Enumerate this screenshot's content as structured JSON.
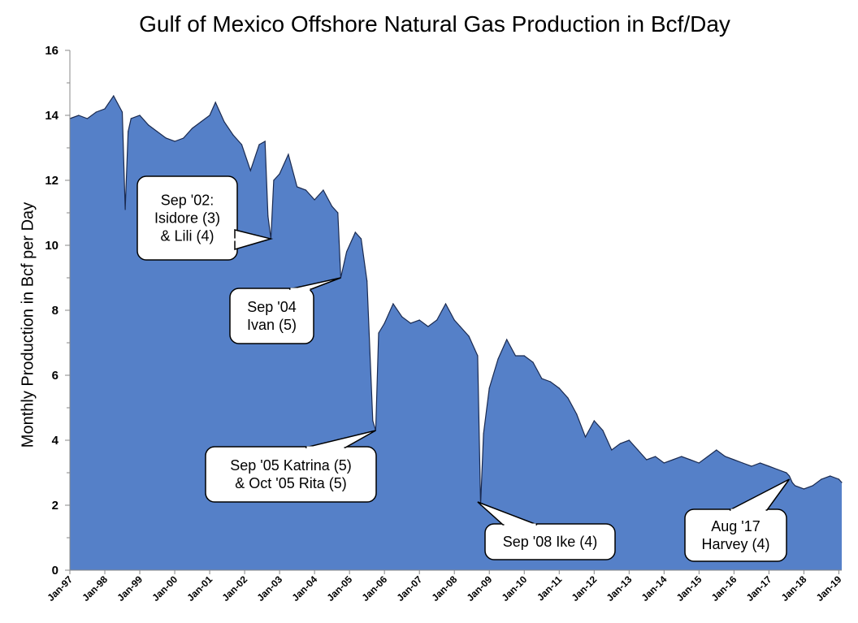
{
  "chart_data": {
    "type": "area",
    "title": "Gulf of Mexico Offshore Natural Gas Production in Bcf/Day",
    "xlabel": "",
    "ylabel": "Monthly Production in Bcf per Day",
    "ylim": [
      0,
      16
    ],
    "yticks": [
      0,
      2,
      4,
      6,
      8,
      10,
      12,
      14,
      16
    ],
    "xticks": [
      "Jan-97",
      "Jan-98",
      "Jan-99",
      "Jan-00",
      "Jan-01",
      "Jan-02",
      "Jan-03",
      "Jan-04",
      "Jan-05",
      "Jan-06",
      "Jan-07",
      "Jan-08",
      "Jan-09",
      "Jan-10",
      "Jan-11",
      "Jan-12",
      "Jan-13",
      "Jan-14",
      "Jan-15",
      "Jan-16",
      "Jan-17",
      "Jan-18",
      "Jan-19"
    ],
    "grid": false,
    "legend": "none",
    "series": [
      {
        "color": "#5580c8",
        "outline": "#1a2a50",
        "x": [
          "1997-01",
          "1997-04",
          "1997-07",
          "1997-10",
          "1998-01",
          "1998-04",
          "1998-07",
          "1998-08",
          "1998-09",
          "1998-10",
          "1999-01",
          "1999-04",
          "1999-07",
          "1999-10",
          "2000-01",
          "2000-04",
          "2000-07",
          "2000-10",
          "2001-01",
          "2001-03",
          "2001-06",
          "2001-09",
          "2001-12",
          "2002-03",
          "2002-06",
          "2002-08",
          "2002-09",
          "2002-10",
          "2002-11",
          "2003-01",
          "2003-04",
          "2003-07",
          "2003-10",
          "2004-01",
          "2004-04",
          "2004-07",
          "2004-09",
          "2004-10",
          "2004-12",
          "2005-03",
          "2005-05",
          "2005-07",
          "2005-09",
          "2005-10",
          "2005-11",
          "2006-01",
          "2006-04",
          "2006-07",
          "2006-10",
          "2007-01",
          "2007-04",
          "2007-07",
          "2007-10",
          "2008-01",
          "2008-03",
          "2008-06",
          "2008-08",
          "2008-09",
          "2008-10",
          "2008-11",
          "2009-01",
          "2009-04",
          "2009-07",
          "2009-10",
          "2010-01",
          "2010-04",
          "2010-07",
          "2010-10",
          "2011-01",
          "2011-04",
          "2011-07",
          "2011-10",
          "2012-01",
          "2012-04",
          "2012-07",
          "2012-10",
          "2013-01",
          "2013-04",
          "2013-07",
          "2013-10",
          "2014-01",
          "2014-04",
          "2014-07",
          "2014-10",
          "2015-01",
          "2015-04",
          "2015-07",
          "2015-10",
          "2016-01",
          "2016-04",
          "2016-07",
          "2016-10",
          "2017-01",
          "2017-04",
          "2017-07",
          "2017-08",
          "2017-09",
          "2017-10",
          "2018-01",
          "2018-04",
          "2018-07",
          "2018-10",
          "2019-01",
          "2019-02"
        ],
        "values": [
          13.9,
          14.0,
          13.9,
          14.1,
          14.2,
          14.6,
          14.1,
          11.1,
          13.5,
          13.9,
          14.0,
          13.7,
          13.5,
          13.3,
          13.2,
          13.3,
          13.6,
          13.8,
          14.0,
          14.4,
          13.8,
          13.4,
          13.1,
          12.3,
          13.1,
          13.2,
          10.9,
          10.2,
          12.0,
          12.2,
          12.8,
          11.8,
          11.7,
          11.4,
          11.7,
          11.2,
          11.0,
          9.0,
          9.8,
          10.4,
          10.2,
          8.9,
          4.6,
          4.3,
          7.3,
          7.6,
          8.2,
          7.8,
          7.6,
          7.7,
          7.5,
          7.7,
          8.2,
          7.7,
          7.5,
          7.2,
          6.8,
          6.6,
          2.0,
          4.2,
          5.6,
          6.5,
          7.1,
          6.6,
          6.6,
          6.4,
          5.9,
          5.8,
          5.6,
          5.3,
          4.8,
          4.1,
          4.6,
          4.3,
          3.7,
          3.9,
          4.0,
          3.7,
          3.4,
          3.5,
          3.3,
          3.4,
          3.5,
          3.4,
          3.3,
          3.5,
          3.7,
          3.5,
          3.4,
          3.3,
          3.2,
          3.3,
          3.2,
          3.1,
          3.0,
          2.9,
          2.7,
          2.6,
          2.5,
          2.6,
          2.8,
          2.9,
          2.8,
          2.7
        ]
      }
    ],
    "annotations": [
      {
        "lines": [
          "Sep '02:",
          "Isidore (3)",
          "& Lili (4)"
        ],
        "point": [
          "2002-10",
          10.2
        ]
      },
      {
        "lines": [
          "Sep '04",
          "Ivan (5)"
        ],
        "point": [
          "2004-10",
          9.0
        ]
      },
      {
        "lines": [
          "Sep '05 Katrina (5)",
          "& Oct '05 Rita (5)"
        ],
        "point": [
          "2005-10",
          4.3
        ]
      },
      {
        "lines": [
          "Sep '08 Ike (4)"
        ],
        "point": [
          "2008-09",
          2.1
        ]
      },
      {
        "lines": [
          "Aug '17",
          "Harvey (4)"
        ],
        "point": [
          "2017-08",
          2.8
        ]
      }
    ]
  }
}
